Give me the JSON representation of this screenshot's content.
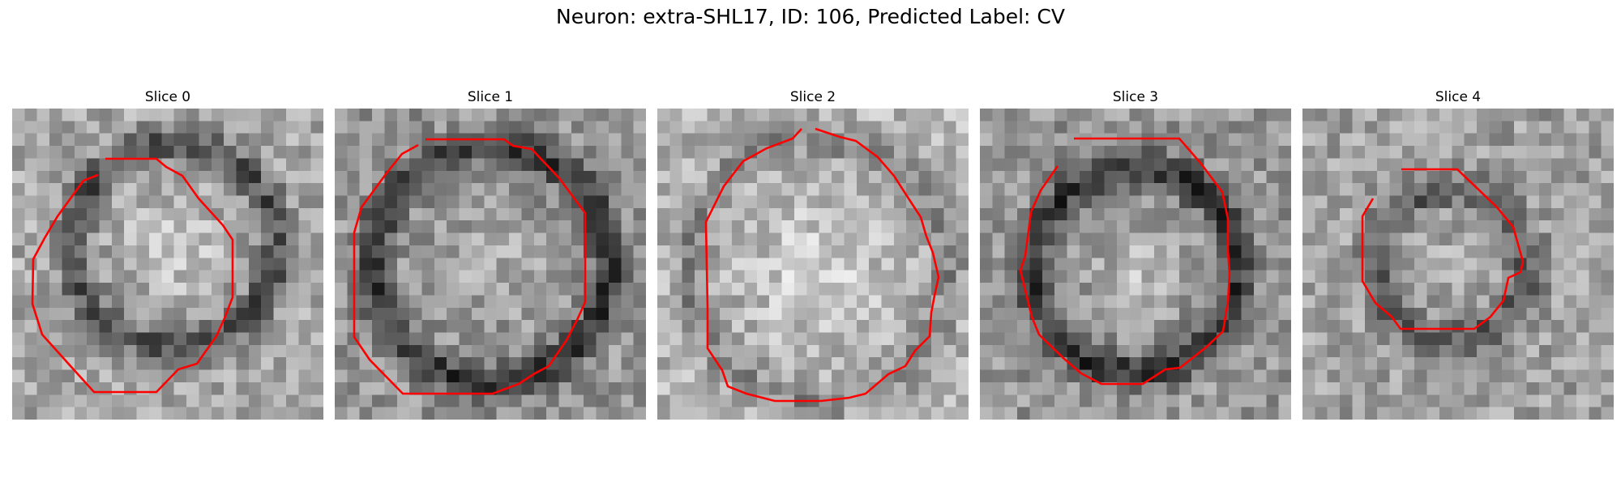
{
  "figure": {
    "title": "Neuron: extra-SHL17, ID: 106, Predicted Label: CV",
    "contour_color": "#ff0000",
    "colormap": "gray",
    "slices": [
      {
        "title": "Slice 0",
        "icon": "grayscale-micrograph"
      },
      {
        "title": "Slice 1",
        "icon": "grayscale-micrograph"
      },
      {
        "title": "Slice 2",
        "icon": "grayscale-micrograph"
      },
      {
        "title": "Slice 3",
        "icon": "grayscale-micrograph"
      },
      {
        "title": "Slice 4",
        "icon": "grayscale-micrograph"
      }
    ]
  }
}
